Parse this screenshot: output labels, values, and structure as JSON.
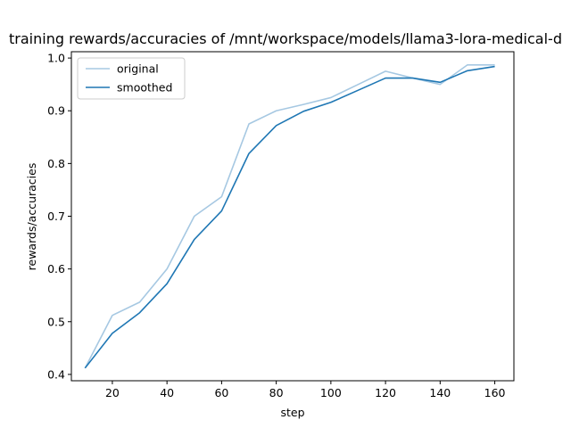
{
  "chart_data": {
    "type": "line",
    "title": "training rewards/accuracies of /mnt/workspace/models/llama3-lora-medical-d",
    "xlabel": "step",
    "ylabel": "rewards/accuracies",
    "xlim": [
      5,
      167
    ],
    "ylim": [
      0.388,
      1.012
    ],
    "xticks": [
      20,
      40,
      60,
      80,
      100,
      120,
      140,
      160
    ],
    "yticks": [
      0.4,
      0.5,
      0.6,
      0.7,
      0.8,
      0.9,
      1.0
    ],
    "x": [
      10,
      20,
      30,
      40,
      50,
      60,
      70,
      80,
      90,
      100,
      110,
      120,
      130,
      140,
      150,
      160
    ],
    "series": [
      {
        "name": "original",
        "color": "#a6c8e2",
        "values": [
          0.412,
          0.512,
          0.537,
          0.6,
          0.7,
          0.737,
          0.875,
          0.9,
          0.912,
          0.925,
          0.95,
          0.975,
          0.962,
          0.95,
          0.987,
          0.987
        ]
      },
      {
        "name": "smoothed",
        "color": "#1f77b4",
        "values": [
          0.412,
          0.478,
          0.517,
          0.572,
          0.656,
          0.71,
          0.819,
          0.872,
          0.899,
          0.916,
          0.939,
          0.962,
          0.962,
          0.954,
          0.976,
          0.984
        ]
      }
    ],
    "legend": "top-left",
    "grid": false
  }
}
